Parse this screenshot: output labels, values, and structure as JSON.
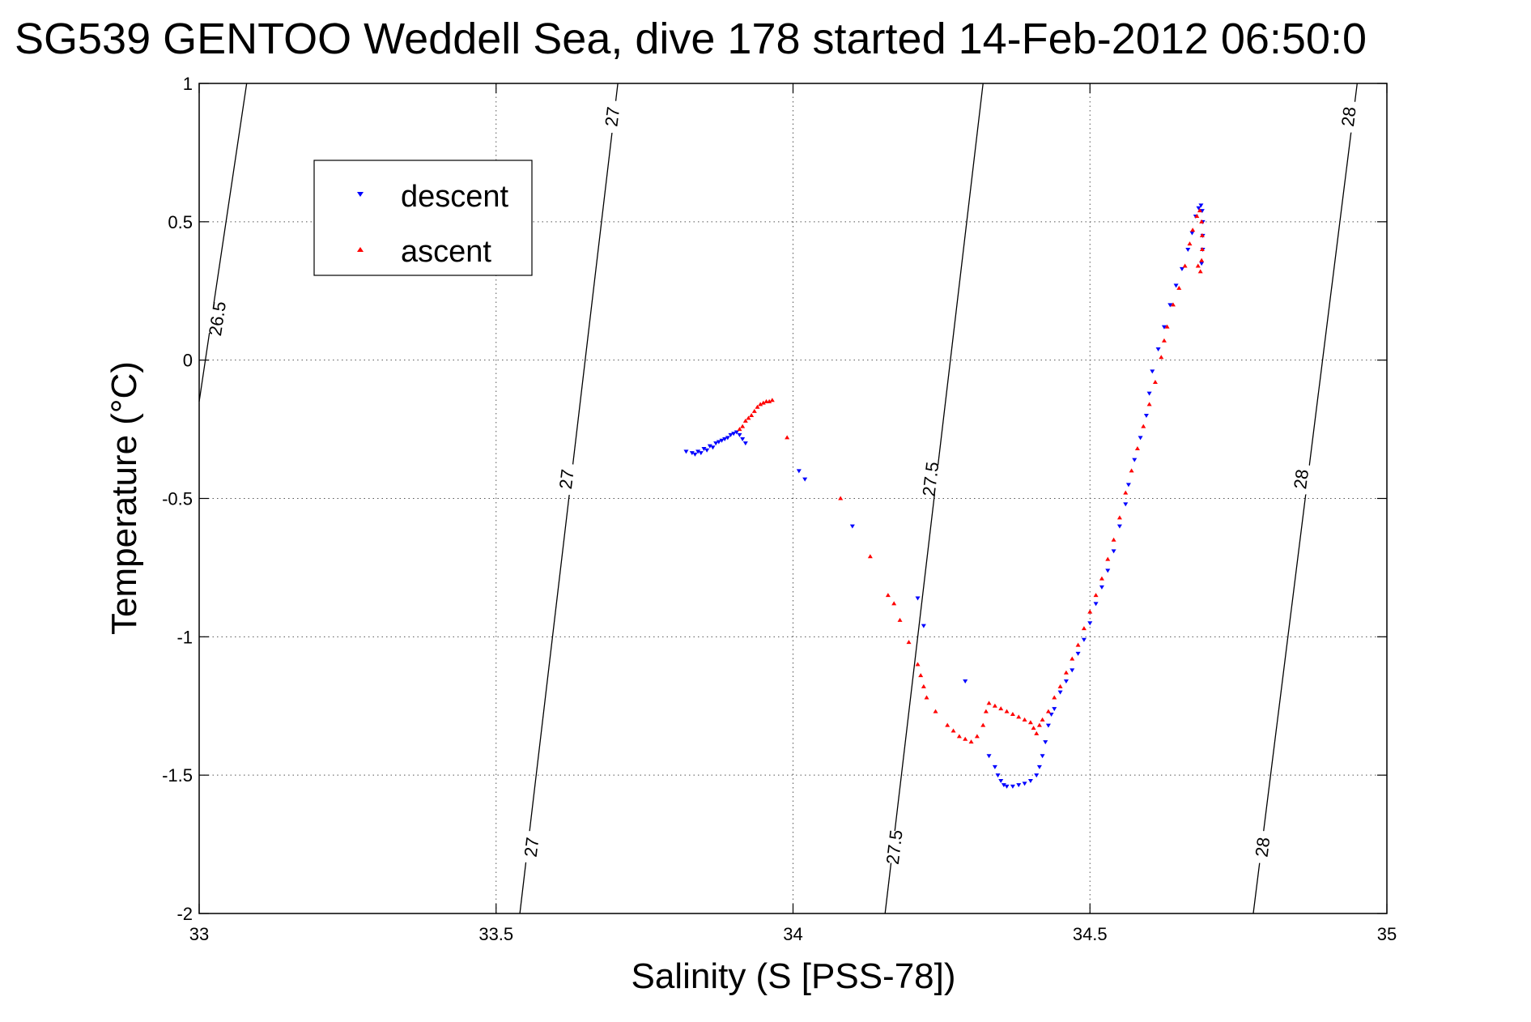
{
  "chart_data": {
    "type": "scatter",
    "title": "SG539 GENTOO Weddell Sea, dive 178 started 14-Feb-2012 06:50:0",
    "xlabel": "Salinity (S [PSS-78])",
    "ylabel": "Temperature (°C)",
    "xlim": [
      33,
      35
    ],
    "ylim": [
      -2,
      1
    ],
    "xticks": [
      33,
      33.5,
      34,
      34.5,
      35
    ],
    "xtick_labels": [
      "33",
      "33.5",
      "34",
      "34.5",
      "35"
    ],
    "yticks": [
      1,
      0.5,
      0,
      -0.5,
      -1,
      -1.5,
      -2
    ],
    "ytick_labels": [
      "1",
      "0.5",
      "0",
      "-0.5",
      "-1",
      "-1.5",
      "-2"
    ],
    "grid": true,
    "legend_position": "top-left",
    "colors": {
      "descent": "#0000ff",
      "ascent": "#ff0000",
      "contour": "#000000",
      "grid": "#555555"
    },
    "contours": [
      {
        "label": "26.5",
        "points": [
          [
            33.08,
            1
          ],
          [
            33.0,
            -0.15
          ]
        ],
        "labels": [
          {
            "text": "26.5",
            "x": 33.03,
            "y": 0.15
          }
        ]
      },
      {
        "label": "27",
        "points": [
          [
            33.705,
            1
          ],
          [
            33.54,
            -2
          ]
        ],
        "labels": [
          {
            "text": "27",
            "x": 33.695,
            "y": 0.88
          },
          {
            "text": "27",
            "x": 33.618,
            "y": -0.43
          },
          {
            "text": "27",
            "x": 33.559,
            "y": -1.76
          }
        ]
      },
      {
        "label": "27.5",
        "points": [
          [
            34.32,
            1
          ],
          [
            34.155,
            -2
          ]
        ],
        "labels": [
          {
            "text": "27.5",
            "x": 34.231,
            "y": -0.43
          },
          {
            "text": "27.5",
            "x": 34.17,
            "y": -1.76
          }
        ]
      },
      {
        "label": "28",
        "points": [
          [
            34.95,
            1
          ],
          [
            34.775,
            -2
          ]
        ],
        "labels": [
          {
            "text": "28",
            "x": 34.935,
            "y": 0.88
          },
          {
            "text": "28",
            "x": 34.855,
            "y": -0.43
          },
          {
            "text": "28",
            "x": 34.79,
            "y": -1.76
          }
        ]
      }
    ],
    "series": [
      {
        "name": "descent",
        "marker": "triangle-down",
        "points": [
          [
            33.82,
            -0.33
          ],
          [
            33.83,
            -0.335
          ],
          [
            33.835,
            -0.34
          ],
          [
            33.84,
            -0.33
          ],
          [
            33.845,
            -0.335
          ],
          [
            33.85,
            -0.32
          ],
          [
            33.855,
            -0.325
          ],
          [
            33.86,
            -0.31
          ],
          [
            33.865,
            -0.315
          ],
          [
            33.87,
            -0.3
          ],
          [
            33.875,
            -0.295
          ],
          [
            33.88,
            -0.29
          ],
          [
            33.885,
            -0.285
          ],
          [
            33.89,
            -0.28
          ],
          [
            33.895,
            -0.27
          ],
          [
            33.9,
            -0.265
          ],
          [
            33.905,
            -0.26
          ],
          [
            33.91,
            -0.27
          ],
          [
            33.915,
            -0.285
          ],
          [
            33.92,
            -0.3
          ],
          [
            34.01,
            -0.4
          ],
          [
            34.02,
            -0.43
          ],
          [
            34.1,
            -0.6
          ],
          [
            34.21,
            -0.86
          ],
          [
            34.22,
            -0.96
          ],
          [
            34.29,
            -1.16
          ],
          [
            34.33,
            -1.43
          ],
          [
            34.34,
            -1.47
          ],
          [
            34.345,
            -1.5
          ],
          [
            34.35,
            -1.52
          ],
          [
            34.355,
            -1.535
          ],
          [
            34.36,
            -1.54
          ],
          [
            34.37,
            -1.54
          ],
          [
            34.38,
            -1.535
          ],
          [
            34.39,
            -1.53
          ],
          [
            34.4,
            -1.52
          ],
          [
            34.41,
            -1.5
          ],
          [
            34.415,
            -1.47
          ],
          [
            34.42,
            -1.43
          ],
          [
            34.425,
            -1.38
          ],
          [
            34.43,
            -1.32
          ],
          [
            34.435,
            -1.28
          ],
          [
            34.44,
            -1.26
          ],
          [
            34.45,
            -1.2
          ],
          [
            34.46,
            -1.16
          ],
          [
            34.47,
            -1.12
          ],
          [
            34.48,
            -1.06
          ],
          [
            34.49,
            -1.01
          ],
          [
            34.5,
            -0.95
          ],
          [
            34.51,
            -0.88
          ],
          [
            34.52,
            -0.82
          ],
          [
            34.53,
            -0.76
          ],
          [
            34.54,
            -0.69
          ],
          [
            34.55,
            -0.6
          ],
          [
            34.56,
            -0.52
          ],
          [
            34.565,
            -0.45
          ],
          [
            34.575,
            -0.36
          ],
          [
            34.585,
            -0.28
          ],
          [
            34.595,
            -0.2
          ],
          [
            34.6,
            -0.12
          ],
          [
            34.605,
            -0.04
          ],
          [
            34.615,
            0.04
          ],
          [
            34.625,
            0.12
          ],
          [
            34.635,
            0.2
          ],
          [
            34.645,
            0.27
          ],
          [
            34.655,
            0.33
          ],
          [
            34.665,
            0.4
          ],
          [
            34.672,
            0.46
          ],
          [
            34.678,
            0.52
          ],
          [
            34.683,
            0.55
          ],
          [
            34.687,
            0.56
          ],
          [
            34.689,
            0.54
          ],
          [
            34.69,
            0.5
          ],
          [
            34.69,
            0.45
          ],
          [
            34.69,
            0.4
          ],
          [
            34.688,
            0.35
          ]
        ]
      },
      {
        "name": "ascent",
        "marker": "triangle-up",
        "points": [
          [
            33.91,
            -0.25
          ],
          [
            33.915,
            -0.24
          ],
          [
            33.92,
            -0.22
          ],
          [
            33.925,
            -0.21
          ],
          [
            33.93,
            -0.2
          ],
          [
            33.935,
            -0.185
          ],
          [
            33.94,
            -0.17
          ],
          [
            33.945,
            -0.16
          ],
          [
            33.95,
            -0.155
          ],
          [
            33.955,
            -0.15
          ],
          [
            33.96,
            -0.15
          ],
          [
            33.965,
            -0.145
          ],
          [
            33.99,
            -0.28
          ],
          [
            34.08,
            -0.5
          ],
          [
            34.13,
            -0.71
          ],
          [
            34.16,
            -0.85
          ],
          [
            34.17,
            -0.88
          ],
          [
            34.18,
            -0.94
          ],
          [
            34.195,
            -1.02
          ],
          [
            34.21,
            -1.1
          ],
          [
            34.215,
            -1.14
          ],
          [
            34.22,
            -1.18
          ],
          [
            34.225,
            -1.22
          ],
          [
            34.24,
            -1.27
          ],
          [
            34.26,
            -1.32
          ],
          [
            34.27,
            -1.34
          ],
          [
            34.28,
            -1.36
          ],
          [
            34.29,
            -1.37
          ],
          [
            34.3,
            -1.38
          ],
          [
            34.31,
            -1.36
          ],
          [
            34.32,
            -1.32
          ],
          [
            34.325,
            -1.27
          ],
          [
            34.33,
            -1.24
          ],
          [
            34.34,
            -1.25
          ],
          [
            34.35,
            -1.26
          ],
          [
            34.36,
            -1.27
          ],
          [
            34.37,
            -1.28
          ],
          [
            34.38,
            -1.29
          ],
          [
            34.39,
            -1.3
          ],
          [
            34.4,
            -1.31
          ],
          [
            34.405,
            -1.33
          ],
          [
            34.41,
            -1.35
          ],
          [
            34.415,
            -1.32
          ],
          [
            34.42,
            -1.3
          ],
          [
            34.43,
            -1.27
          ],
          [
            34.44,
            -1.22
          ],
          [
            34.45,
            -1.18
          ],
          [
            34.46,
            -1.13
          ],
          [
            34.47,
            -1.08
          ],
          [
            34.48,
            -1.03
          ],
          [
            34.49,
            -0.97
          ],
          [
            34.5,
            -0.91
          ],
          [
            34.51,
            -0.85
          ],
          [
            34.52,
            -0.79
          ],
          [
            34.53,
            -0.72
          ],
          [
            34.54,
            -0.65
          ],
          [
            34.55,
            -0.57
          ],
          [
            34.56,
            -0.48
          ],
          [
            34.57,
            -0.4
          ],
          [
            34.58,
            -0.32
          ],
          [
            34.59,
            -0.24
          ],
          [
            34.6,
            -0.16
          ],
          [
            34.61,
            -0.08
          ],
          [
            34.62,
            0.01
          ],
          [
            34.625,
            0.07
          ],
          [
            34.63,
            0.12
          ],
          [
            34.64,
            0.2
          ],
          [
            34.65,
            0.26
          ],
          [
            34.66,
            0.34
          ],
          [
            34.668,
            0.42
          ],
          [
            34.673,
            0.47
          ],
          [
            34.68,
            0.52
          ],
          [
            34.685,
            0.54
          ],
          [
            34.688,
            0.5
          ],
          [
            34.689,
            0.45
          ],
          [
            34.689,
            0.4
          ],
          [
            34.688,
            0.36
          ],
          [
            34.686,
            0.32
          ],
          [
            34.682,
            0.34
          ]
        ]
      }
    ]
  }
}
